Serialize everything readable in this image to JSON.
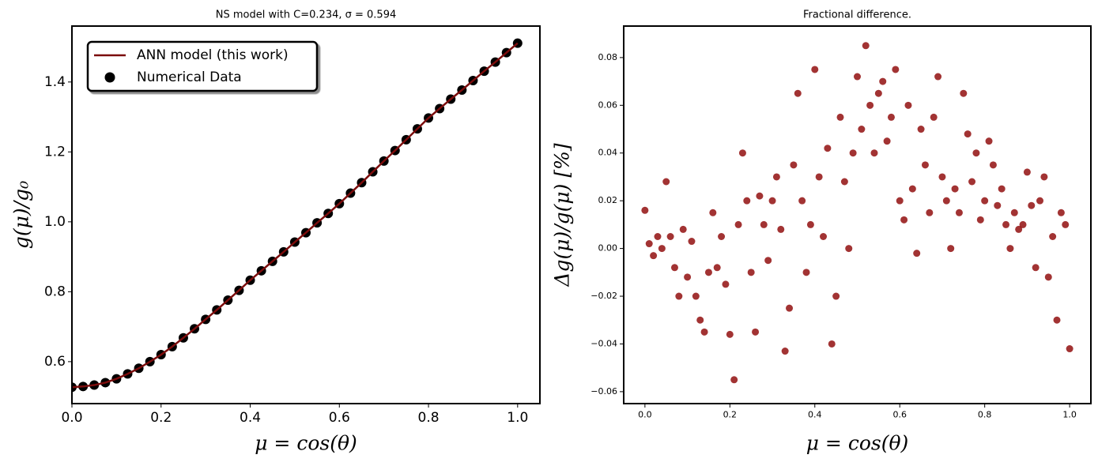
{
  "chart_data": [
    {
      "type": "line",
      "title": "NS model with C=0.234, σ = 0.594",
      "xlabel": "μ = cos(θ)",
      "ylabel": "g(μ)/g₀",
      "legend": "upper left",
      "x": [
        0,
        0.025,
        0.05,
        0.075,
        0.1,
        0.125,
        0.15,
        0.175,
        0.2,
        0.225,
        0.25,
        0.275,
        0.3,
        0.325,
        0.35,
        0.375,
        0.4,
        0.425,
        0.45,
        0.475,
        0.5,
        0.525,
        0.55,
        0.575,
        0.6,
        0.625,
        0.65,
        0.675,
        0.7,
        0.725,
        0.75,
        0.775,
        0.8,
        0.825,
        0.85,
        0.875,
        0.9,
        0.925,
        0.95,
        0.975,
        1.0
      ],
      "series": [
        {
          "name": "Numerical Data",
          "type": "scatter",
          "color": "#000000",
          "values": [
            0.527,
            0.529,
            0.533,
            0.54,
            0.551,
            0.565,
            0.581,
            0.6,
            0.62,
            0.643,
            0.668,
            0.694,
            0.721,
            0.748,
            0.776,
            0.804,
            0.833,
            0.86,
            0.887,
            0.914,
            0.942,
            0.969,
            0.997,
            1.024,
            1.052,
            1.082,
            1.112,
            1.143,
            1.174,
            1.204,
            1.235,
            1.266,
            1.297,
            1.324,
            1.351,
            1.377,
            1.404,
            1.431,
            1.457,
            1.484,
            1.511
          ]
        },
        {
          "name": "ANN model (this work)",
          "type": "line",
          "color": "#7b0c0c",
          "values": [
            0.527,
            0.529,
            0.533,
            0.54,
            0.551,
            0.565,
            0.581,
            0.6,
            0.62,
            0.643,
            0.668,
            0.694,
            0.721,
            0.748,
            0.776,
            0.804,
            0.833,
            0.86,
            0.887,
            0.914,
            0.942,
            0.969,
            0.997,
            1.024,
            1.052,
            1.082,
            1.112,
            1.143,
            1.174,
            1.204,
            1.235,
            1.266,
            1.297,
            1.324,
            1.351,
            1.377,
            1.404,
            1.431,
            1.457,
            1.484,
            1.511
          ]
        }
      ],
      "xlim": [
        0,
        1.05
      ],
      "ylim": [
        0.48,
        1.56
      ],
      "xticks": [
        {
          "value": 0,
          "label": "0.0"
        },
        0.2,
        0.4,
        0.6,
        0.8,
        {
          "value": 1,
          "label": "1.0"
        }
      ],
      "yticks": [
        0.6,
        0.8,
        {
          "value": 1,
          "label": "1.0"
        },
        1.2,
        1.4
      ]
    },
    {
      "type": "scatter",
      "title": "Fractional difference.",
      "xlabel": "μ = cos(θ)",
      "ylabel": "Δg(μ)/g(μ)  [%]",
      "x": [
        0,
        0.01,
        0.02,
        0.03,
        0.04,
        0.05,
        0.06,
        0.07,
        0.08,
        0.09,
        0.1,
        0.11,
        0.12,
        0.13,
        0.14,
        0.15,
        0.16,
        0.17,
        0.18,
        0.19,
        0.2,
        0.21,
        0.22,
        0.23,
        0.24,
        0.25,
        0.26,
        0.27,
        0.28,
        0.29,
        0.3,
        0.31,
        0.32,
        0.33,
        0.34,
        0.35,
        0.36,
        0.37,
        0.38,
        0.39,
        0.4,
        0.41,
        0.42,
        0.43,
        0.44,
        0.45,
        0.46,
        0.47,
        0.48,
        0.49,
        0.5,
        0.51,
        0.52,
        0.53,
        0.54,
        0.55,
        0.56,
        0.57,
        0.58,
        0.59,
        0.6,
        0.61,
        0.62,
        0.63,
        0.64,
        0.65,
        0.66,
        0.67,
        0.68,
        0.69,
        0.7,
        0.71,
        0.72,
        0.73,
        0.74,
        0.75,
        0.76,
        0.77,
        0.78,
        0.79,
        0.8,
        0.81,
        0.82,
        0.83,
        0.84,
        0.85,
        0.86,
        0.87,
        0.88,
        0.89,
        0.9,
        0.91,
        0.92,
        0.93,
        0.94,
        0.95,
        0.96,
        0.97,
        0.98,
        0.99,
        1.0
      ],
      "values": [
        0.016,
        0.002,
        -0.003,
        0.005,
        0.0,
        0.028,
        0.005,
        -0.008,
        -0.02,
        0.008,
        -0.012,
        0.003,
        -0.02,
        -0.03,
        -0.035,
        -0.01,
        0.015,
        -0.008,
        0.005,
        -0.015,
        -0.036,
        -0.055,
        0.01,
        0.04,
        0.02,
        -0.01,
        -0.035,
        0.022,
        0.01,
        -0.005,
        0.02,
        0.03,
        0.008,
        -0.043,
        -0.025,
        0.035,
        0.065,
        0.02,
        -0.01,
        0.01,
        0.075,
        0.03,
        0.005,
        0.042,
        -0.04,
        -0.02,
        0.055,
        0.028,
        0.0,
        0.04,
        0.072,
        0.05,
        0.085,
        0.06,
        0.04,
        0.065,
        0.07,
        0.045,
        0.055,
        0.075,
        0.02,
        0.012,
        0.06,
        0.025,
        -0.002,
        0.05,
        0.035,
        0.015,
        0.055,
        0.072,
        0.03,
        0.02,
        0.0,
        0.025,
        0.015,
        0.065,
        0.048,
        0.028,
        0.04,
        0.012,
        0.02,
        0.045,
        0.035,
        0.018,
        0.025,
        0.01,
        0.0,
        0.015,
        0.008,
        0.01,
        0.032,
        0.018,
        -0.008,
        0.02,
        0.03,
        -0.012,
        0.005,
        -0.03,
        0.015,
        0.01,
        -0.042
      ],
      "color": "#8b0000",
      "xlim": [
        -0.05,
        1.05
      ],
      "ylim": [
        -0.065,
        0.0932
      ],
      "xticks": [
        {
          "value": 0,
          "label": "0.0"
        },
        0.2,
        0.4,
        0.6,
        0.8,
        {
          "value": 1,
          "label": "1.0"
        }
      ],
      "yticks": [
        {
          "value": -0.06,
          "label": "−0.06"
        },
        {
          "value": -0.04,
          "label": "−0.04"
        },
        {
          "value": -0.02,
          "label": "−0.02"
        },
        {
          "value": 0,
          "label": "0.00"
        },
        0.02,
        0.04,
        0.06,
        0.08
      ]
    }
  ]
}
